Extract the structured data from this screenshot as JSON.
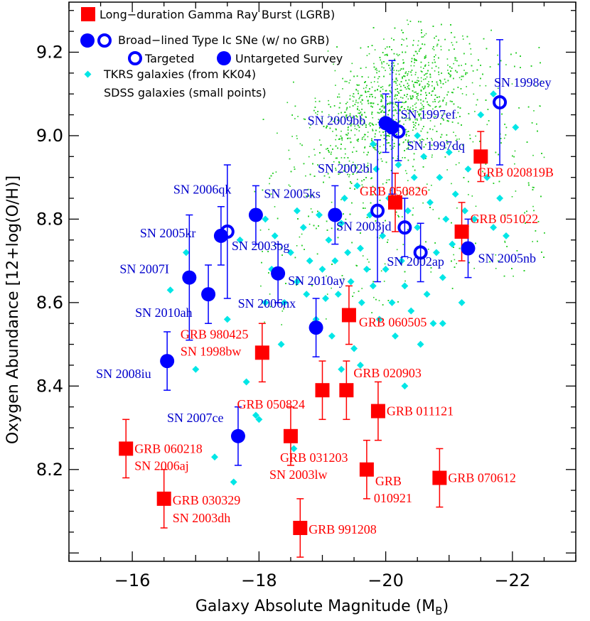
{
  "chart_data": {
    "type": "scatter",
    "xlabel": "Galaxy Absolute Magnitude (M",
    "xlabel_sub": "B",
    "xlabel_close": ")",
    "ylabel": "Oxygen Abundance [12+log(O/H)]",
    "xlim": [
      -15,
      -23
    ],
    "ylim": [
      7.98,
      9.32
    ],
    "x_ticks": [
      -16,
      -18,
      -20,
      -22
    ],
    "x_tick_labels": [
      "−16",
      "−18",
      "−20",
      "−22"
    ],
    "y_ticks": [
      8.2,
      8.4,
      8.6,
      8.8,
      9.0,
      9.2
    ],
    "y_tick_labels": [
      "8.2",
      "8.4",
      "8.6",
      "8.8",
      "9.0",
      "9.2"
    ],
    "colors": {
      "lgrb": "#ff0000",
      "sn": "#0000ff",
      "tkrs": "#00e6e6",
      "sdss": "#22cc22",
      "label_red": "#ff0000",
      "label_blue": "#0000cc"
    },
    "legend": {
      "lgrb": "Long−duration Gamma Ray Burst (LGRB)",
      "sn": "Broad−lined Type Ic SNe (w/ no GRB)",
      "targeted": "Targeted",
      "untargeted": "Untargeted Survey",
      "tkrs": "TKRS galaxies (from KK04)",
      "sdss": "SDSS galaxies (small points)"
    },
    "series_lgrb": [
      {
        "x": -15.9,
        "y": 8.25,
        "err": 0.07,
        "label": "GRB 060218",
        "label2": "SN 2006aj"
      },
      {
        "x": -16.5,
        "y": 8.13,
        "err": 0.07,
        "label": "GRB 030329",
        "label2": "SN 2003dh"
      },
      {
        "x": -18.05,
        "y": 8.48,
        "err": 0.07,
        "label": "GRB 980425",
        "label2": "SN 1998bw"
      },
      {
        "x": -18.5,
        "y": 8.28,
        "err": 0.07,
        "label": "GRB 031203",
        "label2": "SN 2003lw"
      },
      {
        "x": -18.65,
        "y": 8.06,
        "err": 0.07,
        "label": "GRB 991208",
        "label2": ""
      },
      {
        "x": -19.0,
        "y": 8.39,
        "err": 0.07,
        "label": "GRB 050824",
        "label2": ""
      },
      {
        "x": -19.38,
        "y": 8.39,
        "err": 0.07,
        "label": "GRB 020903",
        "label2": ""
      },
      {
        "x": -19.42,
        "y": 8.57,
        "err": 0.07,
        "label": "GRB 060505",
        "label2": ""
      },
      {
        "x": -19.7,
        "y": 8.2,
        "err": 0.07,
        "label": "GRB",
        "label2": "010921"
      },
      {
        "x": -19.88,
        "y": 8.34,
        "err": 0.07,
        "label": "GRB 011121",
        "label2": ""
      },
      {
        "x": -20.15,
        "y": 8.84,
        "err": 0.07,
        "label": "GRB 050826",
        "label2": ""
      },
      {
        "x": -20.85,
        "y": 8.18,
        "err": 0.07,
        "label": "GRB 070612",
        "label2": ""
      },
      {
        "x": -21.2,
        "y": 8.77,
        "err": 0.07,
        "label": "GRB 051022",
        "label2": ""
      },
      {
        "x": -21.5,
        "y": 8.95,
        "err": 0.06,
        "label": "GRB 020819B",
        "label2": ""
      }
    ],
    "series_sn_targeted": [
      {
        "x": -17.5,
        "y": 8.77,
        "err": 0.16,
        "label": "SN 2003bg"
      },
      {
        "x": -19.87,
        "y": 8.82,
        "err": 0.17,
        "label": "SN 2003jd"
      },
      {
        "x": -20.2,
        "y": 9.01,
        "err": 0.07,
        "label": "SN 1997dq"
      },
      {
        "x": -20.3,
        "y": 8.78,
        "err": 0.07,
        "label": "SN 2002ap"
      },
      {
        "x": -20.55,
        "y": 8.72,
        "err": 0.07,
        "label": ""
      },
      {
        "x": -21.8,
        "y": 9.08,
        "err": 0.15,
        "label": "SN 1998ey"
      }
    ],
    "series_sn_untargeted": [
      {
        "x": -16.55,
        "y": 8.46,
        "err": 0.07,
        "label": "SN 2008iu"
      },
      {
        "x": -16.9,
        "y": 8.66,
        "err": 0.15,
        "label": "SN 2007I"
      },
      {
        "x": -17.2,
        "y": 8.62,
        "err": 0.07,
        "label": "SN 2010ah"
      },
      {
        "x": -17.4,
        "y": 8.76,
        "err": 0.07,
        "label": "SN 2005kr"
      },
      {
        "x": -17.67,
        "y": 8.28,
        "err": 0.07,
        "label": "SN 2007ce"
      },
      {
        "x": -17.95,
        "y": 8.81,
        "err": 0.07,
        "label": "SN 2006qk"
      },
      {
        "x": -18.3,
        "y": 8.67,
        "err": 0.07,
        "label": "SN 2010ay"
      },
      {
        "x": -18.9,
        "y": 8.54,
        "err": 0.07,
        "label": "SN 2006nx"
      },
      {
        "x": -19.2,
        "y": 8.81,
        "err": 0.07,
        "label": "SN 2005ks"
      },
      {
        "x": -20.0,
        "y": 9.03,
        "err": 0.07,
        "label": "SN 2009bb"
      },
      {
        "x": -20.1,
        "y": 9.02,
        "err": 0.16,
        "label": "SN 1997ef"
      },
      {
        "x": -21.3,
        "y": 8.73,
        "err": 0.07,
        "label": "SN 2005nb"
      }
    ],
    "extra_labels": [
      {
        "text": "SN 2002bl",
        "color": "sn"
      }
    ],
    "series_tkrs": [
      [
        -16.6,
        8.63
      ],
      [
        -16.85,
        8.72
      ],
      [
        -17.0,
        8.44
      ],
      [
        -17.3,
        8.23
      ],
      [
        -17.5,
        8.56
      ],
      [
        -17.7,
        8.75
      ],
      [
        -17.8,
        8.41
      ],
      [
        -17.95,
        8.33
      ],
      [
        -18.1,
        8.6
      ],
      [
        -18.2,
        8.68
      ],
      [
        -18.25,
        8.76
      ],
      [
        -18.35,
        8.5
      ],
      [
        -18.4,
        8.6
      ],
      [
        -18.5,
        8.72
      ],
      [
        -18.55,
        8.25
      ],
      [
        -18.6,
        8.65
      ],
      [
        -18.7,
        8.78
      ],
      [
        -18.75,
        8.62
      ],
      [
        -18.8,
        8.7
      ],
      [
        -18.9,
        8.56
      ],
      [
        -18.95,
        8.81
      ],
      [
        -19.0,
        8.68
      ],
      [
        -19.05,
        8.61
      ],
      [
        -19.1,
        8.75
      ],
      [
        -19.15,
        8.52
      ],
      [
        -19.2,
        8.7
      ],
      [
        -19.25,
        8.62
      ],
      [
        -19.3,
        8.79
      ],
      [
        -19.35,
        8.85
      ],
      [
        -19.4,
        8.72
      ],
      [
        -19.45,
        8.65
      ],
      [
        -19.5,
        8.49
      ],
      [
        -19.55,
        8.88
      ],
      [
        -19.6,
        8.73
      ],
      [
        -19.62,
        8.6
      ],
      [
        -19.7,
        8.68
      ],
      [
        -19.75,
        8.81
      ],
      [
        -19.8,
        8.64
      ],
      [
        -19.85,
        8.92
      ],
      [
        -19.9,
        8.56
      ],
      [
        -19.95,
        8.76
      ],
      [
        -20.0,
        8.68
      ],
      [
        -20.05,
        8.85
      ],
      [
        -20.1,
        8.6
      ],
      [
        -20.15,
        8.52
      ],
      [
        -20.2,
        8.93
      ],
      [
        -20.25,
        8.7
      ],
      [
        -20.3,
        8.64
      ],
      [
        -20.35,
        8.82
      ],
      [
        -20.4,
        8.58
      ],
      [
        -20.45,
        8.9
      ],
      [
        -20.5,
        8.78
      ],
      [
        -20.55,
        8.5
      ],
      [
        -20.6,
        8.95
      ],
      [
        -20.65,
        8.62
      ],
      [
        -20.7,
        8.84
      ],
      [
        -20.75,
        8.55
      ],
      [
        -20.8,
        8.72
      ],
      [
        -20.85,
        8.9
      ],
      [
        -20.9,
        8.66
      ],
      [
        -20.95,
        8.8
      ],
      [
        -21.0,
        8.96
      ],
      [
        -21.05,
        8.74
      ],
      [
        -21.1,
        8.86
      ],
      [
        -21.2,
        8.6
      ],
      [
        -21.3,
        8.92
      ],
      [
        -21.4,
        8.8
      ],
      [
        -21.5,
        9.05
      ],
      [
        -21.6,
        8.9
      ],
      [
        -21.7,
        8.78
      ],
      [
        -21.8,
        8.85
      ],
      [
        -21.9,
        8.76
      ],
      [
        -22.05,
        9.02
      ],
      [
        -19.6,
        8.45
      ],
      [
        -20.3,
        8.4
      ],
      [
        -19.3,
        8.44
      ],
      [
        -18.6,
        8.82
      ],
      [
        -20.9,
        8.55
      ],
      [
        -21.25,
        8.82
      ],
      [
        -17.6,
        8.17
      ],
      [
        -18.0,
        8.32
      ],
      [
        -19.8,
        8.98
      ],
      [
        -20.5,
        9.0
      ],
      [
        -21.7,
        9.1
      ],
      [
        -18.1,
        8.8
      ]
    ]
  }
}
